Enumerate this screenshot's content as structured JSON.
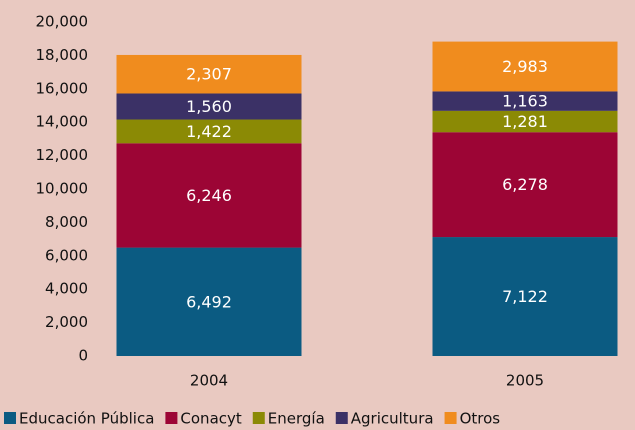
{
  "chart_data": {
    "type": "stacked_bar",
    "categories": [
      "2004",
      "2005"
    ],
    "series": [
      {
        "name": "Educación Pública",
        "color": "#0b5b82",
        "values": [
          6492,
          7122
        ],
        "value_labels": [
          "6,492",
          "7,122"
        ]
      },
      {
        "name": "Conacyt",
        "color": "#9c0535",
        "values": [
          6246,
          6278
        ],
        "value_labels": [
          "6,246",
          "6,278"
        ]
      },
      {
        "name": "Energía",
        "color": "#8b8a05",
        "values": [
          1422,
          1281
        ],
        "value_labels": [
          "1,422",
          "1,281"
        ]
      },
      {
        "name": "Agricultura",
        "color": "#3b3166",
        "values": [
          1560,
          1163
        ],
        "value_labels": [
          "1,560",
          "1,163"
        ]
      },
      {
        "name": "Otros",
        "color": "#f08c1e",
        "values": [
          2307,
          2983
        ],
        "value_labels": [
          "2,307",
          "2,983"
        ]
      }
    ],
    "ylim": [
      0,
      20000
    ],
    "yticks": [
      0,
      {
        "value": 2000,
        "label": "2,000"
      },
      {
        "value": 4000,
        "label": "4,000"
      },
      {
        "value": 6000,
        "label": "6,000"
      },
      {
        "value": 8000,
        "label": "8,000"
      },
      {
        "value": 10000,
        "label": "10,000"
      },
      {
        "value": 12000,
        "label": "12,000"
      },
      {
        "value": 14000,
        "label": "14,000"
      },
      {
        "value": 16000,
        "label": "16,000"
      },
      {
        "value": 18000,
        "label": "18,000"
      },
      {
        "value": 20000,
        "label": "20,000"
      }
    ],
    "grid": false,
    "legend": "bottom"
  }
}
